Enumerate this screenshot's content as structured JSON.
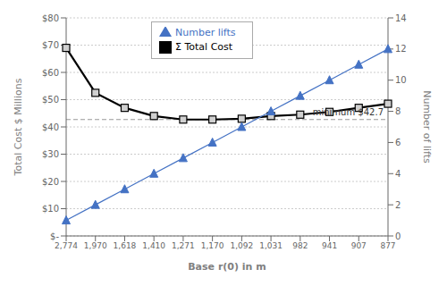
{
  "chart_data": {
    "type": "line",
    "categories": [
      "2,774",
      "1,970",
      "1,618",
      "1,410",
      "1,271",
      "1,170",
      "1,092",
      "1,031",
      "982",
      "941",
      "907",
      "877"
    ],
    "xlabel": "Base r(0) in m",
    "ylabel": "Total Cost $ Millions",
    "y2label": "Number of lifts",
    "ylim": [
      0,
      80
    ],
    "yticks": [
      {
        "value": 0,
        "label": "$-"
      },
      {
        "value": 10,
        "label": "$10"
      },
      {
        "value": 20,
        "label": "$20"
      },
      {
        "value": 30,
        "label": "$30"
      },
      {
        "value": 40,
        "label": "$40"
      },
      {
        "value": 50,
        "label": "$50"
      },
      {
        "value": 60,
        "label": "$60"
      },
      {
        "value": 70,
        "label": "$70"
      },
      {
        "value": 80,
        "label": "$80"
      }
    ],
    "y2lim": [
      0,
      14
    ],
    "y2ticks": [
      0,
      2,
      4,
      6,
      8,
      10,
      12,
      14
    ],
    "series": [
      {
        "name": "Σ Total Cost",
        "color": "#000000",
        "marker": "square",
        "values": [
          69,
          52.5,
          47,
          44,
          42.7,
          42.7,
          43,
          44,
          44.5,
          45.5,
          47,
          48.5
        ]
      },
      {
        "name": "Number lifts",
        "color": "#4472C4",
        "marker": "triangle",
        "axis": "y2",
        "values": [
          1,
          2,
          3,
          4,
          5,
          6,
          7,
          8,
          9,
          10,
          11,
          12
        ]
      }
    ],
    "grid": true,
    "legend": "upper left",
    "annotation": "minimum  $42.7",
    "minimum_line": 42.7
  }
}
